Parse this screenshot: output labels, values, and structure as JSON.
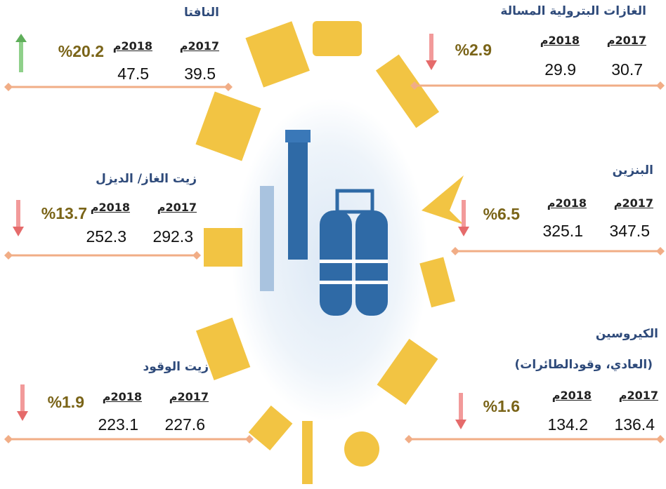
{
  "years": [
    "2017م",
    "2018م"
  ],
  "panels": [
    {
      "title": [
        "الغازات البترولية المسالة"
      ],
      "values": [
        "30.7",
        "29.9"
      ],
      "change": "%2.9",
      "trend": "down"
    },
    {
      "title": [
        "النافتا"
      ],
      "values": [
        "39.5",
        "47.5"
      ],
      "change": "%20.2",
      "trend": "up"
    },
    {
      "title": [
        "البنزين"
      ],
      "values": [
        "347.5",
        "325.1"
      ],
      "change": "%6.5",
      "trend": "down"
    },
    {
      "title": [
        "زيت الغاز/ الديزل"
      ],
      "values": [
        "292.3",
        "252.3"
      ],
      "change": "%13.7",
      "trend": "down"
    },
    {
      "title": [
        "الكيروسين",
        "(العادي، وقودالطائرات)"
      ],
      "values": [
        "136.4",
        "134.2"
      ],
      "change": "%1.6",
      "trend": "down"
    },
    {
      "title": [
        "زيت الوقود"
      ],
      "values": [
        "227.6",
        "223.1"
      ],
      "change": "%1.9",
      "trend": "down"
    }
  ]
}
